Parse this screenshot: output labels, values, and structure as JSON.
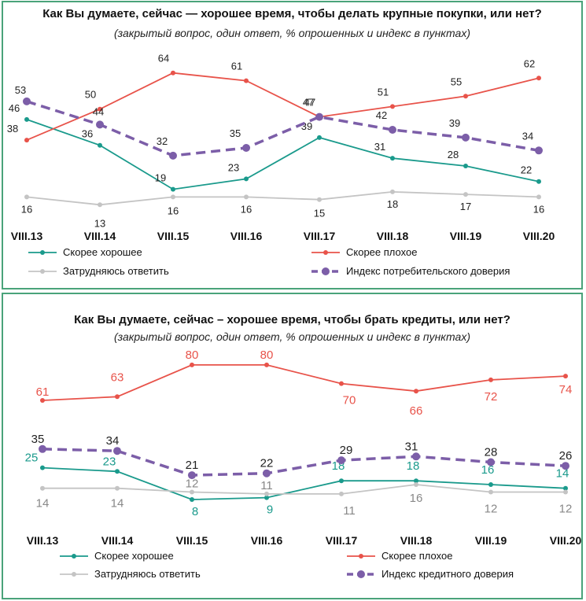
{
  "chart_data": [
    {
      "type": "line",
      "title": "Как Вы думаете, сейчас — хорошее время, чтобы делать крупные покупки, или нет?",
      "subtitle": "(закрытый вопрос, один ответ, % опрошенных и индекс в пунктах)",
      "categories": [
        "VIII.13",
        "VIII.14",
        "VIII.15",
        "VIII.16",
        "VIII.17",
        "VIII.18",
        "VIII.19",
        "VIII.20"
      ],
      "ylim": [
        0,
        70
      ],
      "series": [
        {
          "name": "Скорее хорошее",
          "color": "#1a9a8c",
          "style": "solid",
          "values": [
            46,
            36,
            19,
            23,
            39,
            31,
            28,
            22
          ]
        },
        {
          "name": "Скорее плохое",
          "color": "#e8534a",
          "style": "solid",
          "values": [
            38,
            50,
            64,
            61,
            47,
            51,
            55,
            62
          ]
        },
        {
          "name": "Затрудняюсь ответить",
          "color": "#c4c4c4",
          "style": "solid",
          "values": [
            16,
            13,
            16,
            16,
            15,
            18,
            17,
            16
          ]
        },
        {
          "name": "Индекс потребительского доверия",
          "color": "#7c5ea8",
          "style": "dashed",
          "values": [
            53,
            44,
            32,
            35,
            47,
            42,
            39,
            34
          ]
        }
      ]
    },
    {
      "type": "line",
      "title": "Как Вы думаете, сейчас – хорошее время, чтобы брать кредиты, или нет?",
      "subtitle": "(закрытый вопрос, один ответ, % опрошенных и индекс в пунктах)",
      "categories": [
        "VIII.13",
        "VIII.14",
        "VIII.15",
        "VIII.16",
        "VIII.17",
        "VIII.18",
        "VIII.19",
        "VIII.20"
      ],
      "ylim": [
        0,
        85
      ],
      "series": [
        {
          "name": "Скорее хорошее",
          "color": "#1a9a8c",
          "style": "solid",
          "values": [
            25,
            23,
            8,
            9,
            18,
            18,
            16,
            14
          ]
        },
        {
          "name": "Скорее плохое",
          "color": "#e8534a",
          "style": "solid",
          "values": [
            61,
            63,
            80,
            80,
            70,
            66,
            72,
            74
          ]
        },
        {
          "name": "Затрудняюсь ответить",
          "color": "#c4c4c4",
          "style": "solid",
          "values": [
            14,
            14,
            12,
            11,
            11,
            16,
            12,
            12
          ]
        },
        {
          "name": "Индекс кредитного доверия",
          "color": "#7c5ea8",
          "style": "dashed",
          "values": [
            35,
            34,
            21,
            22,
            29,
            31,
            28,
            26
          ]
        }
      ]
    }
  ]
}
